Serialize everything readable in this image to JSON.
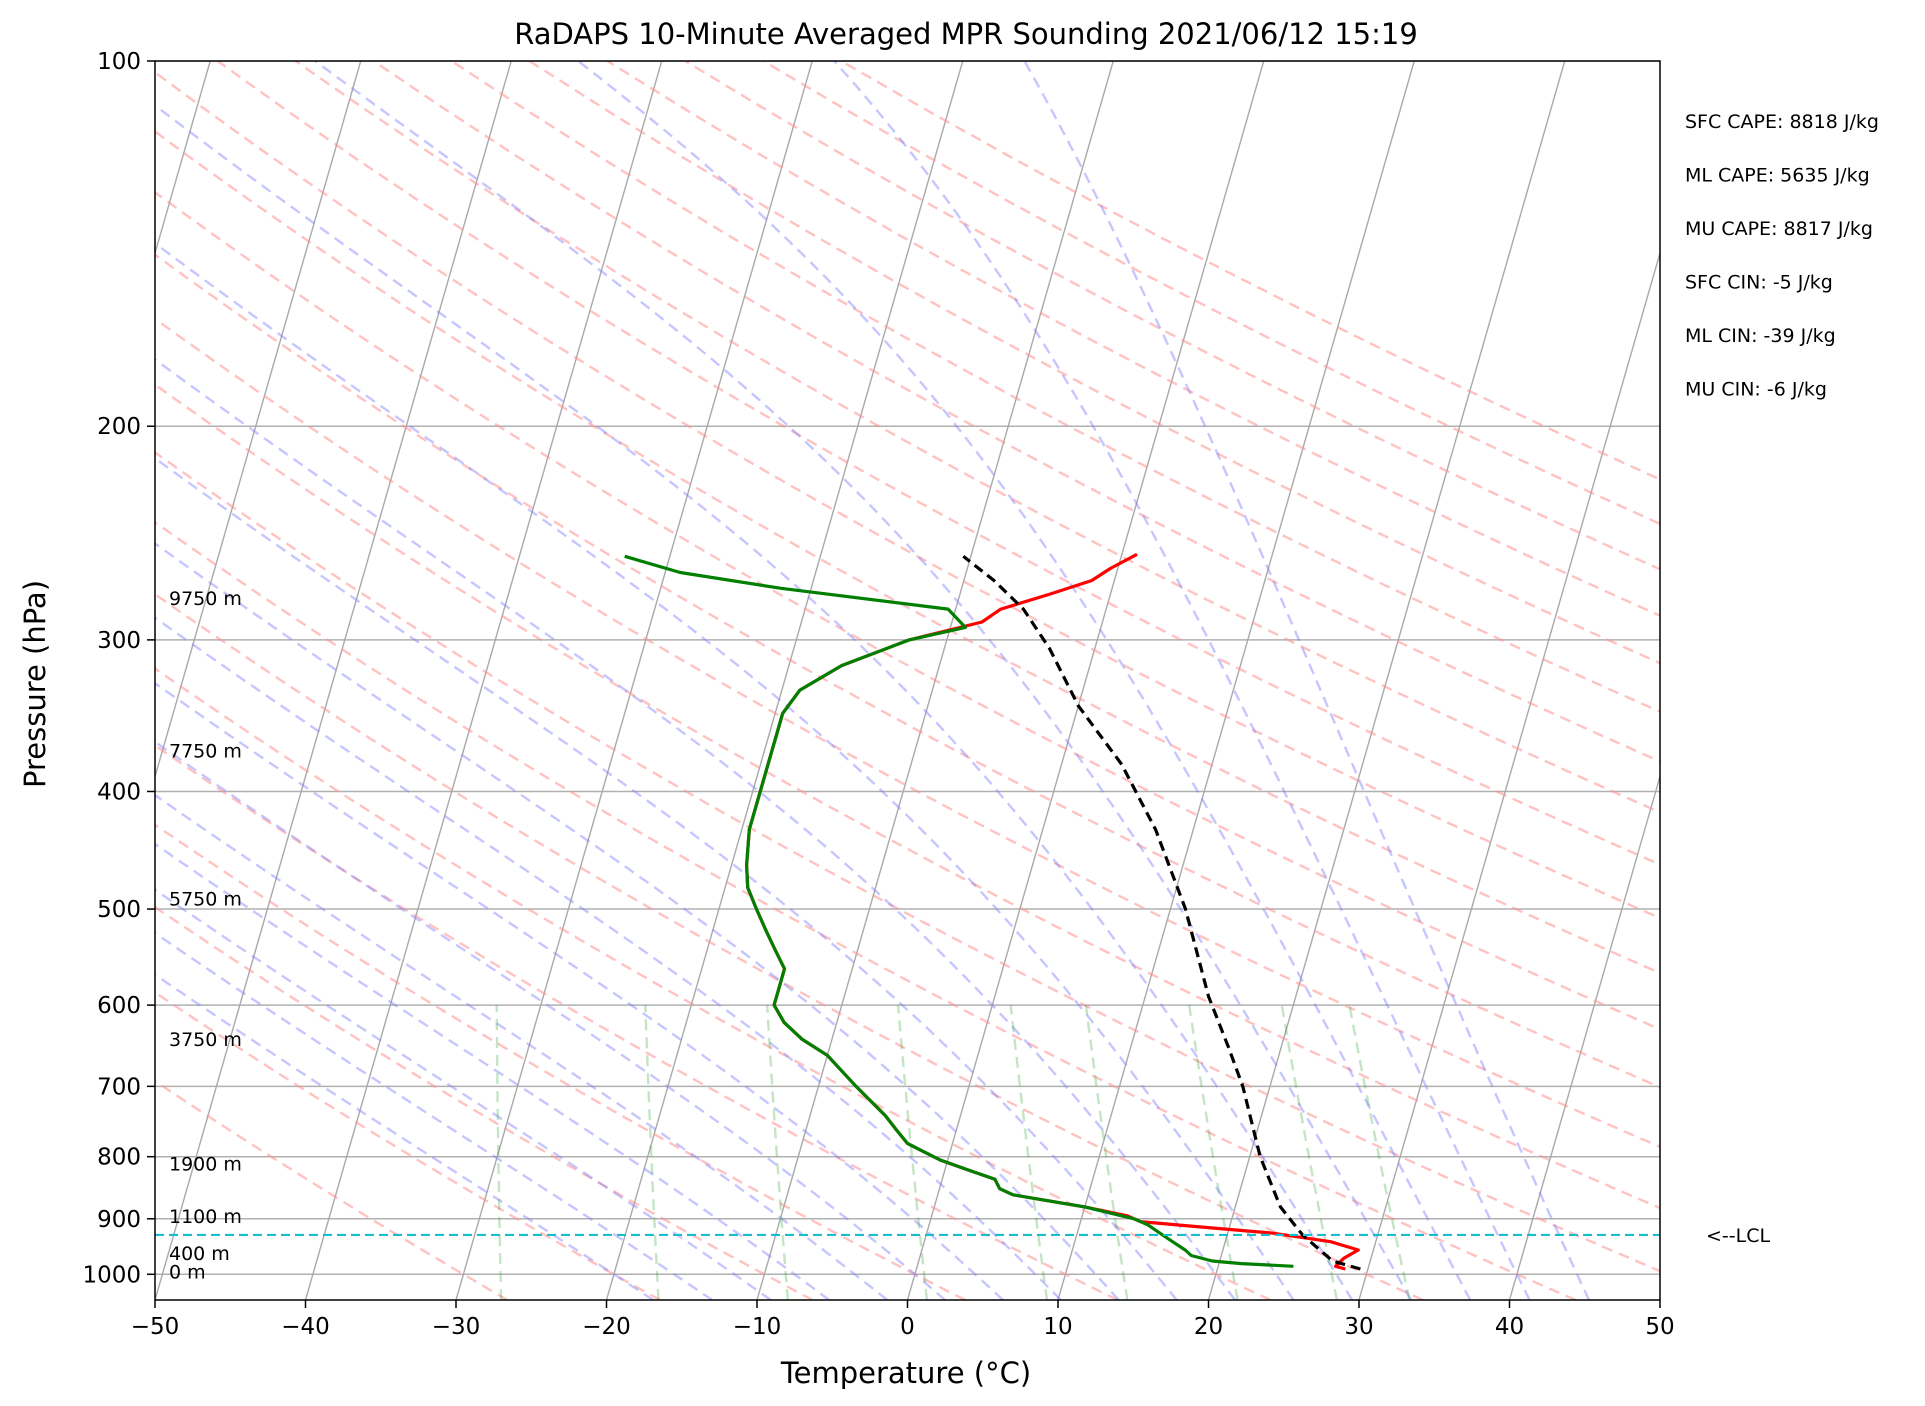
{
  "chart_data": {
    "type": "line",
    "title": "RaDAPS 10-Minute Averaged MPR Sounding 2021/06/12 15:19",
    "xlabel": "Temperature (°C)",
    "ylabel": "Pressure (hPa)",
    "xlim": [
      -50,
      50
    ],
    "ylim": [
      1050,
      100
    ],
    "y_scale": "log",
    "skew": "skew-T log-P",
    "grid": true,
    "x_ticks": [
      -50,
      -40,
      -30,
      -20,
      -10,
      0,
      10,
      20,
      30,
      40,
      50
    ],
    "x_tick_labels": [
      "−50",
      "−40",
      "−30",
      "−20",
      "−10",
      "0",
      "10",
      "20",
      "30",
      "40",
      "50"
    ],
    "y_ticks": [
      100,
      200,
      300,
      400,
      500,
      600,
      700,
      800,
      900,
      1000
    ],
    "y_tick_labels": [
      "100",
      "200",
      "300",
      "400",
      "500",
      "600",
      "700",
      "800",
      "900",
      "1000"
    ],
    "height_labels": [
      {
        "text": "9750 m",
        "pressure": 277
      },
      {
        "text": "7750 m",
        "pressure": 370
      },
      {
        "text": "5750 m",
        "pressure": 490
      },
      {
        "text": "3750 m",
        "pressure": 640
      },
      {
        "text": "1900 m",
        "pressure": 810
      },
      {
        "text": "1100 m",
        "pressure": 895
      },
      {
        "text": "400 m",
        "pressure": 960
      },
      {
        "text": "0 m",
        "pressure": 995
      }
    ],
    "indices": [
      "SFC CAPE: 8818 J/kg",
      "ML CAPE: 5635 J/kg",
      "MU CAPE: 8817 J/kg",
      "SFC CIN: -5 J/kg",
      "ML CIN: -39 J/kg",
      "MU CIN: -6 J/kg"
    ],
    "lcl": {
      "label": "<--LCL",
      "pressure": 928
    },
    "series": [
      {
        "color": "#ff0000",
        "points": [
          [
            28.5,
            990
          ],
          [
            27.8,
            985
          ],
          [
            28.2,
            970
          ],
          [
            29.0,
            955
          ],
          [
            27.0,
            940
          ],
          [
            23.0,
            925
          ],
          [
            18.5,
            915
          ],
          [
            14.0,
            905
          ],
          [
            13.0,
            895
          ],
          [
            10.0,
            880
          ],
          [
            7.0,
            868
          ],
          [
            5.0,
            860
          ],
          [
            4.0,
            850
          ],
          [
            3.5,
            835
          ],
          [
            1.5,
            820
          ],
          [
            -0.5,
            805
          ],
          [
            -2.0,
            790
          ],
          [
            -3.0,
            780
          ],
          [
            -4.0,
            760
          ],
          [
            -5.0,
            740
          ],
          [
            -7.5,
            700
          ],
          [
            -10.0,
            660
          ],
          [
            -12.0,
            640
          ],
          [
            -13.5,
            620
          ],
          [
            -14.5,
            600
          ],
          [
            -14.5,
            580
          ],
          [
            -14.5,
            560
          ],
          [
            -15.5,
            540
          ],
          [
            -16.5,
            520
          ],
          [
            -17.5,
            500
          ],
          [
            -18.5,
            480
          ],
          [
            -19.0,
            460
          ],
          [
            -19.5,
            430
          ],
          [
            -19.5,
            410
          ],
          [
            -19.5,
            390
          ],
          [
            -19.5,
            370
          ],
          [
            -19.5,
            360
          ],
          [
            -19.5,
            345
          ],
          [
            -18.8,
            330
          ],
          [
            -16.5,
            315
          ],
          [
            -12.5,
            300
          ],
          [
            -8.0,
            290
          ],
          [
            -7.0,
            283
          ],
          [
            -4.0,
            275
          ],
          [
            -1.5,
            268
          ],
          [
            -0.5,
            262
          ],
          [
            1.0,
            255
          ]
        ]
      },
      {
        "color": "#007f00",
        "points": [
          [
            25.0,
            985
          ],
          [
            21.5,
            980
          ],
          [
            19.5,
            975
          ],
          [
            18.0,
            965
          ],
          [
            17.5,
            955
          ],
          [
            16.5,
            940
          ],
          [
            15.5,
            925
          ],
          [
            14.5,
            910
          ],
          [
            13.5,
            900
          ],
          [
            10.0,
            880
          ],
          [
            7.0,
            868
          ],
          [
            5.0,
            860
          ],
          [
            4.0,
            850
          ],
          [
            3.5,
            835
          ],
          [
            1.5,
            820
          ],
          [
            -0.5,
            805
          ],
          [
            -2.0,
            790
          ],
          [
            -3.0,
            780
          ],
          [
            -4.0,
            760
          ],
          [
            -5.0,
            740
          ],
          [
            -7.5,
            700
          ],
          [
            -10.0,
            660
          ],
          [
            -12.0,
            640
          ],
          [
            -13.5,
            620
          ],
          [
            -14.5,
            600
          ],
          [
            -14.5,
            580
          ],
          [
            -14.5,
            560
          ],
          [
            -15.5,
            540
          ],
          [
            -16.5,
            520
          ],
          [
            -17.5,
            500
          ],
          [
            -18.5,
            480
          ],
          [
            -19.0,
            460
          ],
          [
            -19.5,
            430
          ],
          [
            -19.5,
            410
          ],
          [
            -19.5,
            390
          ],
          [
            -19.5,
            370
          ],
          [
            -19.5,
            360
          ],
          [
            -19.5,
            345
          ],
          [
            -18.8,
            330
          ],
          [
            -16.5,
            315
          ],
          [
            -12.5,
            300
          ],
          [
            -9.0,
            293
          ],
          [
            -10.5,
            283
          ],
          [
            -22.0,
            272
          ],
          [
            -29.0,
            264
          ],
          [
            -33.0,
            256
          ]
        ]
      },
      {
        "color": "#000000",
        "dashed": true,
        "points": [
          [
            29.5,
            990
          ],
          [
            27.5,
            975
          ],
          [
            25.0,
            928
          ],
          [
            23.0,
            880
          ],
          [
            20.7,
            800
          ],
          [
            18.2,
            700
          ],
          [
            16.5,
            650
          ],
          [
            14.2,
            590
          ],
          [
            11.0,
            500
          ],
          [
            7.5,
            430
          ],
          [
            4.0,
            380
          ],
          [
            0.0,
            340
          ],
          [
            -3.0,
            305
          ],
          [
            -5.5,
            283
          ],
          [
            -8.0,
            268
          ],
          [
            -10.5,
            256
          ]
        ]
      }
    ]
  }
}
